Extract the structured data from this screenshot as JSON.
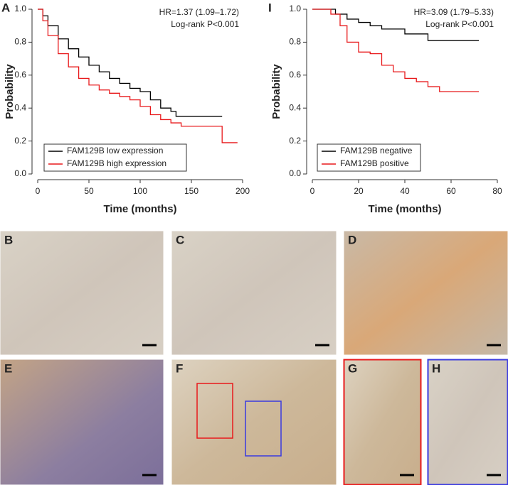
{
  "chart_data": [
    {
      "type": "line",
      "panel": "A",
      "xlabel": "Time (months)",
      "ylabel": "Probability",
      "annotations": [
        "HR=1.37 (1.09–1.72)",
        "Log-rank P<0.001"
      ],
      "xlim": [
        0,
        200
      ],
      "xticks": [
        0,
        50,
        100,
        150,
        200
      ],
      "ylim": [
        0,
        1
      ],
      "yticks": [
        {
          "value": 0,
          "label": "0.0"
        },
        0.2,
        0.4,
        0.6,
        0.8,
        {
          "value": 1,
          "label": "1.0"
        }
      ],
      "legend": "lower left",
      "series": [
        {
          "name": "FAM129B low expression",
          "color": "#000000",
          "x": [
            0,
            5,
            10,
            20,
            30,
            40,
            50,
            60,
            70,
            80,
            90,
            100,
            110,
            120,
            130,
            135,
            180
          ],
          "values": [
            1,
            0.96,
            0.9,
            0.82,
            0.76,
            0.71,
            0.66,
            0.62,
            0.58,
            0.55,
            0.52,
            0.5,
            0.45,
            0.4,
            0.38,
            0.35,
            0.35
          ]
        },
        {
          "name": "FAM129B high expression",
          "color": "#e8191b",
          "x": [
            0,
            5,
            10,
            20,
            30,
            40,
            50,
            60,
            70,
            80,
            90,
            100,
            110,
            120,
            130,
            140,
            150,
            180,
            195
          ],
          "values": [
            1,
            0.93,
            0.84,
            0.73,
            0.65,
            0.58,
            0.54,
            0.51,
            0.49,
            0.47,
            0.45,
            0.41,
            0.36,
            0.33,
            0.31,
            0.29,
            0.29,
            0.19,
            0.19
          ]
        }
      ]
    },
    {
      "type": "line",
      "panel": "I",
      "xlabel": "Time (months)",
      "ylabel": "Probability",
      "annotations": [
        "HR=3.09 (1.79–5.33)",
        "Log-rank P<0.001"
      ],
      "xlim": [
        0,
        80
      ],
      "xticks": [
        0,
        20,
        40,
        60,
        80
      ],
      "ylim": [
        0,
        1
      ],
      "yticks": [
        {
          "value": 0,
          "label": "0.0"
        },
        0.2,
        0.4,
        0.6,
        0.8,
        {
          "value": 1,
          "label": "1.0"
        }
      ],
      "legend": "lower left",
      "series": [
        {
          "name": "FAM129B negative",
          "color": "#000000",
          "x": [
            0,
            10,
            15,
            20,
            25,
            30,
            40,
            50,
            72
          ],
          "values": [
            1,
            0.97,
            0.94,
            0.92,
            0.9,
            0.88,
            0.85,
            0.81,
            0.81
          ]
        },
        {
          "name": "FAM129B positive",
          "color": "#e8191b",
          "x": [
            0,
            8,
            12,
            15,
            20,
            25,
            30,
            35,
            40,
            45,
            50,
            55,
            72
          ],
          "values": [
            1,
            0.97,
            0.9,
            0.8,
            0.74,
            0.73,
            0.66,
            0.62,
            0.58,
            0.56,
            0.53,
            0.5,
            0.5
          ]
        }
      ]
    }
  ],
  "images": [
    {
      "label": "B"
    },
    {
      "label": "C"
    },
    {
      "label": "D"
    },
    {
      "label": "E"
    },
    {
      "label": "F"
    },
    {
      "label": "G"
    },
    {
      "label": "H"
    }
  ]
}
